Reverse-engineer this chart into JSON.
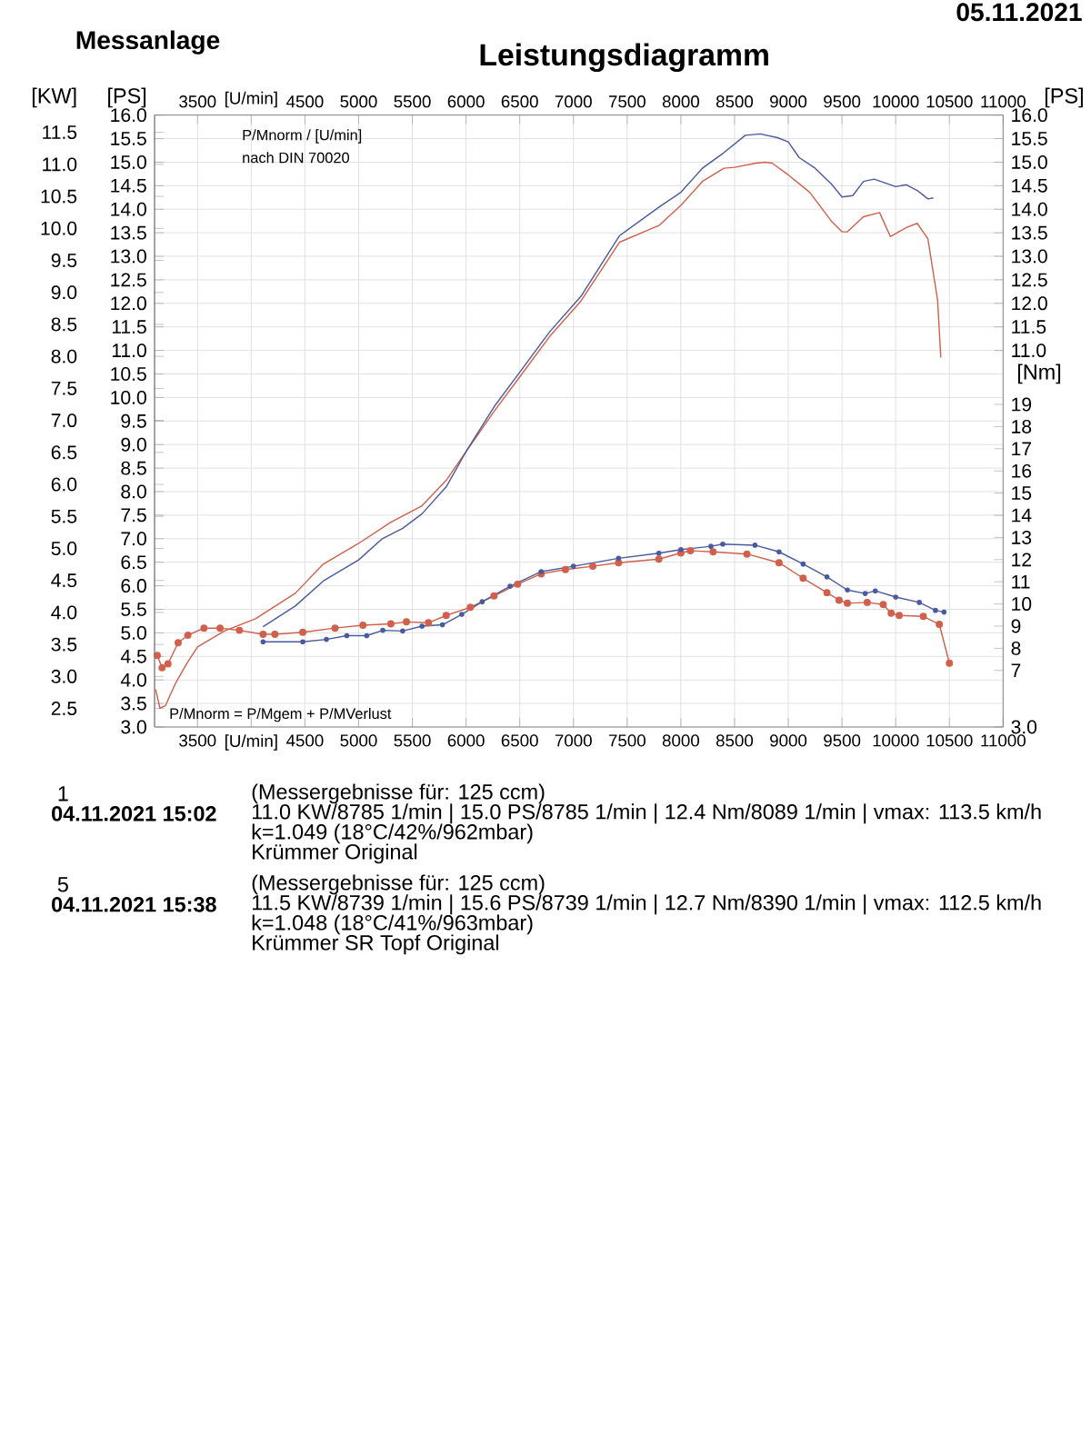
{
  "chart_data": {
    "type": "line",
    "title": "Leistungsdiagramm",
    "xlim": [
      3100,
      11000
    ],
    "xticks": [
      3500,
      {
        "value": 4000,
        "label": "[U/min]"
      },
      4500,
      5000,
      5500,
      6000,
      6500,
      7000,
      7500,
      8000,
      8500,
      9000,
      9500,
      10000,
      10500,
      11000
    ],
    "x2lim": [
      3100,
      11000
    ],
    "x2ticks": [
      3500,
      {
        "value": 4000,
        "label": "[U/min]"
      },
      4500,
      5000,
      5500,
      6000,
      6500,
      7000,
      7500,
      8000,
      8500,
      9000,
      9500,
      10000,
      10500,
      11000
    ],
    "ylabel": "[PS]",
    "ylim": [
      3,
      16
    ],
    "yticks": [
      {
        "value": 3,
        "label": "3.0"
      },
      3.5,
      {
        "value": 4,
        "label": "4.0"
      },
      4.5,
      {
        "value": 5,
        "label": "5.0"
      },
      5.5,
      {
        "value": 6,
        "label": "6.0"
      },
      6.5,
      {
        "value": 7,
        "label": "7.0"
      },
      7.5,
      {
        "value": 8,
        "label": "8.0"
      },
      8.5,
      {
        "value": 9,
        "label": "9.0"
      },
      9.5,
      {
        "value": 10,
        "label": "10.0"
      },
      10.5,
      {
        "value": 11,
        "label": "11.0"
      },
      {
        "value": 11.5,
        "label": "11.5"
      },
      {
        "value": 12,
        "label": "12.0"
      },
      {
        "value": 12.5,
        "label": "12.5"
      },
      {
        "value": 13,
        "label": "13.0"
      },
      {
        "value": 13.5,
        "label": "13.5"
      },
      {
        "value": 14,
        "label": "14.0"
      },
      {
        "value": 14.5,
        "label": "14.5"
      },
      {
        "value": 15,
        "label": "15.0"
      },
      {
        "value": 15.5,
        "label": "15.5"
      },
      {
        "value": 16,
        "label": "16.0"
      }
    ],
    "y3label": "[KW]",
    "y3lim": [
      2.21,
      11.77
    ],
    "y3ticks": [
      2.5,
      {
        "value": 3,
        "label": "3.0"
      },
      3.5,
      {
        "value": 4,
        "label": "4.0"
      },
      4.5,
      {
        "value": 5,
        "label": "5.0"
      },
      5.5,
      {
        "value": 6,
        "label": "6.0"
      },
      6.5,
      {
        "value": 7,
        "label": "7.0"
      },
      7.5,
      {
        "value": 8,
        "label": "8.0"
      },
      8.5,
      {
        "value": 9,
        "label": "9.0"
      },
      9.5,
      {
        "value": 10,
        "label": "10.0"
      },
      10.5,
      {
        "value": 11,
        "label": "11.0"
      },
      11.5
    ],
    "y2label": "[Nm]",
    "y2lim": [
      4.45,
      32.05
    ],
    "y2ticks": [
      7,
      8,
      9,
      10,
      11,
      12,
      13,
      14,
      15,
      16,
      17,
      18,
      19
    ],
    "grid": true,
    "series": [
      {
        "color": "#d0604c",
        "x": [
          3110,
          3150,
          3200,
          3300,
          3400,
          3500,
          3750,
          4040,
          4410,
          4670,
          5000,
          5300,
          5590,
          5815,
          6000,
          6260,
          6520,
          6780,
          7070,
          7430,
          7800,
          8000,
          8200,
          8400,
          8500,
          8700,
          8785,
          8850,
          9000,
          9200,
          9400,
          9500,
          9550,
          9700,
          9850,
          9950,
          10100,
          10200,
          10300,
          10390,
          10420
        ],
        "values": [
          3.8,
          3.4,
          3.45,
          3.95,
          4.35,
          4.7,
          5.04,
          5.3,
          5.84,
          6.46,
          6.9,
          7.35,
          7.7,
          8.24,
          8.85,
          9.7,
          10.5,
          11.3,
          12.05,
          13.3,
          13.66,
          14.08,
          14.59,
          14.87,
          14.89,
          14.98,
          15.0,
          14.98,
          14.73,
          14.36,
          13.75,
          13.52,
          13.52,
          13.84,
          13.93,
          13.42,
          13.61,
          13.7,
          13.37,
          12.07,
          10.85
        ]
      },
      {
        "color": "#4a5a9e",
        "x": [
          4110,
          4410,
          4670,
          5000,
          5220,
          5410,
          5590,
          5815,
          6000,
          6260,
          6520,
          6780,
          7070,
          7430,
          7800,
          8000,
          8200,
          8400,
          8600,
          8739,
          8900,
          9000,
          9100,
          9250,
          9400,
          9500,
          9600,
          9700,
          9800,
          10000,
          10100,
          10200,
          10300,
          10350
        ],
        "values": [
          5.13,
          5.57,
          6.1,
          6.55,
          7.0,
          7.22,
          7.53,
          8.1,
          8.85,
          9.8,
          10.6,
          11.4,
          12.15,
          13.44,
          14.05,
          14.36,
          14.87,
          15.2,
          15.57,
          15.6,
          15.52,
          15.43,
          15.1,
          14.87,
          14.54,
          14.26,
          14.29,
          14.59,
          14.64,
          14.48,
          14.52,
          14.4,
          14.22,
          14.24
        ]
      },
      {
        "axis": "y2",
        "marker": "circle",
        "color": "#d0604c",
        "x": [
          3125,
          3170,
          3225,
          3320,
          3410,
          3560,
          3710,
          3890,
          4110,
          4220,
          4480,
          4780,
          5040,
          5300,
          5445,
          5650,
          5815,
          6040,
          6260,
          6480,
          6700,
          6925,
          7180,
          7420,
          7795,
          8000,
          8089,
          8300,
          8615,
          8914,
          9138,
          9360,
          9473,
          9550,
          9735,
          9884,
          9958,
          10033,
          10257,
          10406,
          10500
        ],
        "values": [
          7.68,
          7.12,
          7.3,
          8.25,
          8.59,
          8.91,
          8.91,
          8.81,
          8.63,
          8.63,
          8.72,
          8.91,
          9.04,
          9.1,
          9.19,
          9.15,
          9.48,
          9.85,
          10.36,
          10.89,
          11.36,
          11.55,
          11.7,
          11.86,
          12.02,
          12.3,
          12.4,
          12.35,
          12.25,
          11.86,
          11.16,
          10.51,
          10.17,
          10.03,
          10.07,
          9.97,
          9.58,
          9.48,
          9.44,
          9.08,
          7.33
        ]
      },
      {
        "axis": "y2",
        "marker": "circle",
        "color": "#4a5a9e",
        "x": [
          4110,
          4480,
          4700,
          4890,
          5075,
          5225,
          5410,
          5590,
          5780,
          5960,
          6150,
          6410,
          6700,
          7000,
          7420,
          7795,
          8000,
          8280,
          8390,
          8690,
          8914,
          9138,
          9360,
          9550,
          9716,
          9810,
          10000,
          10220,
          10370,
          10450
        ],
        "values": [
          8.29,
          8.29,
          8.4,
          8.57,
          8.57,
          8.81,
          8.78,
          9.0,
          9.06,
          9.53,
          10.1,
          10.8,
          11.46,
          11.7,
          12.06,
          12.29,
          12.45,
          12.6,
          12.7,
          12.65,
          12.35,
          11.8,
          11.22,
          10.63,
          10.47,
          10.59,
          10.31,
          10.07,
          9.71,
          9.63
        ]
      }
    ],
    "annotations": [
      "Messanlage",
      "05.11.2021",
      "P/Mnorm / [U/min]",
      "nach DIN 70020",
      "P/Mnorm = P/Mgem + P/MVerlust",
      "1",
      "04.11.2021 15:02",
      "(Messergebnisse für: 125 ccm)",
      "11.0 KW/8785 1/min | 15.0 PS/8785 1/min | 12.4 Nm/8089 1/min | vmax: 113.5 km/h",
      "k=1.049 (18°C/42%/962mbar)",
      "Krümmer Original",
      "5",
      "04.11.2021 15:38",
      "(Messergebnisse für: 125 ccm)",
      "11.5 KW/8739 1/min | 15.6 PS/8739 1/min | 12.7 Nm/8390 1/min | vmax: 112.5 km/h",
      "k=1.048 (18°C/41%/963mbar)",
      "Krümmer SR Topf Original"
    ]
  }
}
